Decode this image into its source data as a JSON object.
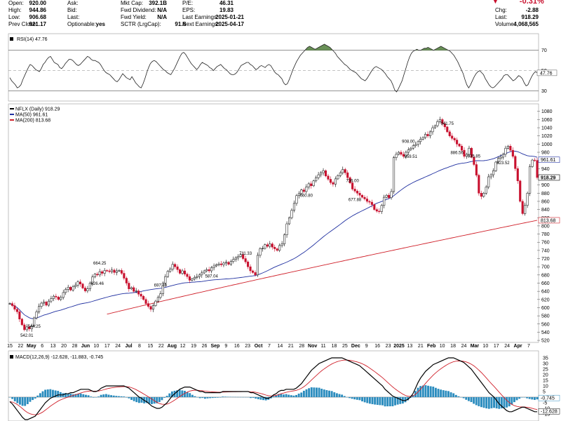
{
  "header": {
    "cells": [
      {
        "k": "Open:",
        "v": "920.00",
        "lx": 12,
        "vx": 66,
        "y": 0
      },
      {
        "k": "High:",
        "v": "944.86",
        "lx": 12,
        "vx": 66,
        "y": 10
      },
      {
        "k": "Low:",
        "v": "906.68",
        "lx": 12,
        "vx": 66,
        "y": 20
      },
      {
        "k": "Prev Close:",
        "v": "921.17",
        "lx": 12,
        "vx": 66,
        "y": 30
      },
      {
        "k": "Ask:",
        "v": "",
        "lx": 96,
        "vx": 150,
        "y": 0
      },
      {
        "k": "Bid:",
        "v": "",
        "lx": 96,
        "vx": 150,
        "y": 10
      },
      {
        "k": "Last:",
        "v": "",
        "lx": 96,
        "vx": 150,
        "y": 20
      },
      {
        "k": "Optionable:",
        "v": "yes",
        "lx": 96,
        "vx": 150,
        "y": 30
      },
      {
        "k": "Mkt Cap:",
        "v": "392.1B",
        "lx": 172,
        "vx": 238,
        "y": 0
      },
      {
        "k": "Fwd Dividend:",
        "v": "N/A",
        "lx": 172,
        "vx": 238,
        "y": 10
      },
      {
        "k": "Fwd Yield:",
        "v": "N/A",
        "lx": 172,
        "vx": 238,
        "y": 20
      },
      {
        "k": "SCTR (LrgCap):",
        "v": "91.6",
        "lx": 172,
        "vx": 265,
        "y": 30
      },
      {
        "k": "P/E:",
        "v": "46.31",
        "lx": 260,
        "vx": 333,
        "y": 0
      },
      {
        "k": "EPS:",
        "v": "19.83",
        "lx": 260,
        "vx": 333,
        "y": 10
      },
      {
        "k": "Last Earnings:",
        "v": "2025-01-21",
        "lx": 260,
        "vx": 348,
        "y": 20
      },
      {
        "k": "Next Earnings:",
        "v": "2025-04-17",
        "lx": 260,
        "vx": 348,
        "y": 30
      },
      {
        "k": "Chg:",
        "v": "-2.88",
        "lx": 706,
        "vx": 768,
        "y": 10
      },
      {
        "k": "Last:",
        "v": "918.29",
        "lx": 706,
        "vx": 768,
        "y": 20
      },
      {
        "k": "Volume:",
        "v": "4,068,565",
        "lx": 706,
        "vx": 768,
        "y": 30
      }
    ],
    "pct_change": "-0.31%",
    "down_color": "#c8102e"
  },
  "chart_data": [
    {
      "type": "line",
      "panel": "rsi",
      "title": "RSI(14) 47.76",
      "ylim": [
        20,
        85
      ],
      "y_ticks": [
        30,
        50,
        70
      ],
      "overbought": 70,
      "oversold": 30,
      "current_label": "47.76",
      "values": [
        43,
        40,
        38,
        36,
        33,
        34,
        36,
        41,
        45,
        49,
        53,
        56,
        55,
        53,
        51,
        50,
        49,
        52,
        56,
        58,
        61,
        63,
        64,
        61,
        58,
        57,
        56,
        53,
        52,
        54,
        57,
        59,
        61,
        61,
        60,
        58,
        56,
        55,
        56,
        58,
        60,
        62,
        64,
        63,
        61,
        60,
        60,
        59,
        58,
        56,
        53,
        50,
        48,
        47,
        46,
        44,
        42,
        40,
        39,
        41,
        44,
        47,
        45,
        43,
        42,
        41,
        44,
        41,
        38,
        36,
        34,
        33,
        37,
        42,
        48,
        53,
        57,
        59,
        60,
        59,
        57,
        55,
        53,
        51,
        50,
        48,
        47,
        46,
        49,
        52,
        56,
        60,
        64,
        67,
        68,
        66,
        63,
        60,
        57,
        55,
        53,
        51,
        53,
        56,
        58,
        57,
        56,
        55,
        53,
        52,
        50,
        52,
        54,
        55,
        56,
        54,
        52,
        51,
        49,
        47,
        46,
        46,
        47,
        49,
        52,
        55,
        56,
        57,
        58,
        58,
        56,
        55,
        53,
        51,
        52,
        54,
        55,
        54,
        53,
        55,
        56,
        55,
        52,
        49,
        47,
        46,
        44,
        42,
        38,
        36,
        37,
        41,
        46,
        51,
        55,
        59,
        62,
        65,
        67,
        69,
        71,
        73,
        74,
        73,
        72,
        71,
        72,
        73,
        74,
        75,
        76,
        75,
        74,
        73,
        71,
        69,
        67,
        64,
        62,
        60,
        58,
        56,
        55,
        53,
        51,
        50,
        49,
        48,
        46,
        44,
        42,
        41,
        40,
        42,
        45,
        48,
        51,
        53,
        54,
        53,
        52,
        51,
        49,
        47,
        44,
        42,
        40,
        36,
        31,
        29,
        32,
        36,
        40,
        46,
        52,
        58,
        63,
        67,
        69,
        70,
        71,
        70,
        70,
        71,
        72,
        72,
        73,
        72,
        71,
        70,
        71,
        72,
        73,
        74,
        73,
        72,
        71,
        70,
        69,
        67,
        65,
        62,
        59,
        55,
        51,
        47,
        41,
        36,
        33,
        36,
        40,
        44,
        47,
        49,
        50,
        48,
        46,
        42,
        39,
        36,
        34,
        33,
        34,
        36,
        38,
        40,
        42,
        45,
        46,
        46,
        44,
        42,
        40,
        41,
        43,
        45,
        44,
        42,
        38,
        35,
        36,
        40,
        44,
        47,
        49,
        48
      ]
    },
    {
      "type": "candlestick",
      "panel": "price",
      "title": "NFLX (Daily) 918.29",
      "ylim": [
        515,
        1095
      ],
      "y_ticks": [
        520,
        540,
        560,
        580,
        600,
        620,
        640,
        660,
        680,
        700,
        720,
        740,
        760,
        780,
        800,
        820,
        840,
        860,
        880,
        900,
        920,
        940,
        960,
        980,
        1000,
        1020,
        1040,
        1060,
        1080
      ],
      "x_tick_labels": [
        "15",
        "22",
        "May",
        "6",
        "13",
        "20",
        "28",
        "Jun",
        "10",
        "17",
        "24",
        "Jul",
        "8",
        "15",
        "22",
        "Aug",
        "12",
        "19",
        "26",
        "Sep",
        "9",
        "16",
        "23",
        "Oct",
        "7",
        "14",
        "21",
        "28",
        "Nov",
        "11",
        "18",
        "25",
        "Dec",
        "9",
        "16",
        "23",
        "2025",
        "13",
        "21",
        "Feb",
        "10",
        "18",
        "24",
        "Mar",
        "10",
        "17",
        "24",
        "Apr",
        "7"
      ],
      "x_tick_bold": [
        "May",
        "Jun",
        "Jul",
        "Aug",
        "Sep",
        "Oct",
        "Nov",
        "Dec",
        "2025",
        "Feb",
        "Mar",
        "Apr"
      ],
      "legend": [
        {
          "name": "NFLX (Daily) 918.29",
          "color": "#000000"
        },
        {
          "name": "MA(50) 961.61",
          "color": "#1f2fa0"
        },
        {
          "name": "MA(200) 813.68",
          "color": "#d0202a"
        }
      ],
      "close": [
        610,
        605,
        596,
        590,
        572,
        558,
        546,
        553,
        548,
        555,
        575,
        590,
        603,
        611,
        614,
        606,
        616,
        622,
        628,
        626,
        620,
        625,
        637,
        645,
        650,
        643,
        651,
        655,
        663,
        658,
        648,
        641,
        646,
        660,
        675,
        682,
        680,
        688,
        684,
        691,
        690,
        688,
        692,
        686,
        690,
        691,
        684,
        672,
        660,
        646,
        649,
        640,
        641,
        633,
        628,
        620,
        610,
        603,
        596,
        605,
        616,
        625,
        634,
        660,
        676,
        689,
        694,
        706,
        700,
        693,
        684,
        690,
        682,
        676,
        667,
        670,
        674,
        676,
        680,
        685,
        690,
        693,
        690,
        698,
        702,
        705,
        707,
        705,
        709,
        711,
        706,
        713,
        718,
        722,
        725,
        730,
        720,
        712,
        700,
        690,
        686,
        680,
        728,
        744,
        745,
        754,
        750,
        756,
        748,
        744,
        740,
        752,
        756,
        778,
        805,
        820,
        838,
        855,
        874,
        879,
        888,
        884,
        895,
        903,
        898,
        910,
        918,
        925,
        930,
        935,
        922,
        914,
        906,
        902,
        915,
        923,
        930,
        938,
        930,
        918,
        905,
        890,
        885,
        880,
        875,
        870,
        866,
        860,
        858,
        852,
        840,
        836,
        835,
        850,
        870,
        875,
        869,
        884,
        967,
        975,
        980,
        975,
        970,
        980,
        986,
        990,
        996,
        999,
        1006,
        1012,
        1016,
        1024,
        1020,
        1030,
        1040,
        1045,
        1055,
        1060,
        1050,
        1042,
        1030,
        1020,
        1014,
        1010,
        1000,
        995,
        985,
        970,
        975,
        990,
        968,
        950,
        924,
        880,
        872,
        880,
        895,
        920,
        925,
        935,
        956,
        965,
        968,
        975,
        990,
        995,
        985,
        970,
        940,
        910,
        860,
        830,
        850,
        880,
        945,
        961,
        960,
        918.29
      ],
      "annotations": [
        {
          "i": 7,
          "text": "542.01",
          "pos": "below"
        },
        {
          "i": 10,
          "text": "544.25",
          "pos": "below"
        },
        {
          "i": 36,
          "text": "626.46",
          "pos": "below"
        },
        {
          "i": 37,
          "text": "664.25",
          "pos": "above"
        },
        {
          "i": 62,
          "text": "697.49",
          "pos": "above"
        },
        {
          "i": 83,
          "text": "587.04",
          "pos": "below"
        },
        {
          "i": 97,
          "text": "711.33",
          "pos": "above"
        },
        {
          "i": 122,
          "text": "660.80",
          "pos": "below"
        },
        {
          "i": 141,
          "text": "736.00",
          "pos": "above"
        },
        {
          "i": 142,
          "text": "677.88",
          "pos": "below"
        },
        {
          "i": 164,
          "text": "908.00",
          "pos": "above"
        },
        {
          "i": 165,
          "text": "859.51",
          "pos": "below"
        },
        {
          "i": 180,
          "text": "941.75",
          "pos": "above"
        },
        {
          "i": 184,
          "text": "886.56",
          "pos": "below"
        },
        {
          "i": 191,
          "text": "935.85",
          "pos": "above"
        },
        {
          "i": 203,
          "text": "823.52",
          "pos": "below"
        },
        {
          "i": 233,
          "text": "1064.50",
          "pos": "above"
        },
        {
          "i": 260,
          "text": "854.50",
          "pos": "below"
        },
        {
          "i": 264,
          "text": "967.63",
          "pos": "above"
        },
        {
          "i": 270,
          "text": "998.70",
          "pos": "above"
        },
        {
          "i": 276,
          "text": "900.55",
          "pos": "below"
        },
        {
          "i": 280,
          "text": "951.45",
          "pos": "above"
        },
        {
          "i": 283,
          "text": "821.10",
          "pos": "below"
        }
      ],
      "last_price_label": "918.29",
      "ma50_label": "961.61",
      "ma200_label": "813.68"
    },
    {
      "type": "line",
      "panel": "macd",
      "title": "MACD(12,26,9) -12.628, -11.883, -0.745",
      "ylim": [
        -20,
        40
      ],
      "y_ticks": [
        -15,
        -10,
        -5,
        0,
        5,
        10,
        15,
        20,
        25,
        30,
        35
      ],
      "labels": [
        "-0.745",
        "-12.628"
      ],
      "macd": [
        -4,
        -6,
        -9,
        -12,
        -15,
        -18,
        -20,
        -20,
        -19,
        -18,
        -17,
        -14,
        -11,
        -8,
        -5,
        -3,
        -1,
        0,
        1,
        2,
        2,
        2,
        3,
        3,
        4,
        4,
        5,
        6,
        7,
        7,
        7,
        7,
        6,
        5,
        5,
        6,
        8,
        9,
        10,
        10,
        10,
        10,
        10,
        10,
        10,
        10,
        9,
        8,
        6,
        4,
        2,
        0,
        -1,
        -3,
        -4,
        -6,
        -8,
        -9,
        -10,
        -10,
        -9,
        -7,
        -5,
        -2,
        1,
        3,
        5,
        7,
        8,
        9,
        9,
        9,
        8,
        7,
        6,
        5,
        5,
        4,
        4,
        4,
        4,
        4,
        4,
        4,
        5,
        5,
        5,
        5,
        5,
        5,
        5,
        5,
        5,
        5,
        5,
        4,
        4,
        3,
        2,
        1,
        0,
        -1,
        -1,
        0,
        2,
        3,
        5,
        6,
        6,
        7,
        7,
        7,
        7,
        8,
        10,
        12,
        15,
        18,
        21,
        24,
        26,
        28,
        30,
        31,
        32,
        33,
        34,
        35,
        35,
        35,
        35,
        35,
        34,
        33,
        32,
        31,
        30,
        29,
        28,
        26,
        24,
        22,
        20,
        18,
        16,
        14,
        12,
        10,
        7,
        5,
        3,
        1,
        0,
        -1,
        -2,
        -3,
        -3,
        -2,
        0,
        3,
        8,
        13,
        17,
        20,
        23,
        25,
        27,
        29,
        30,
        31,
        32,
        33,
        34,
        35,
        35,
        35,
        34,
        33,
        32,
        31,
        29,
        27,
        25,
        22,
        19,
        16,
        13,
        10,
        7,
        4,
        2,
        0,
        -3,
        -6,
        -8,
        -10,
        -12,
        -13,
        -13,
        -12,
        -11,
        -10,
        -9,
        -9,
        -10,
        -11,
        -12,
        -13,
        -13
      ]
    }
  ]
}
